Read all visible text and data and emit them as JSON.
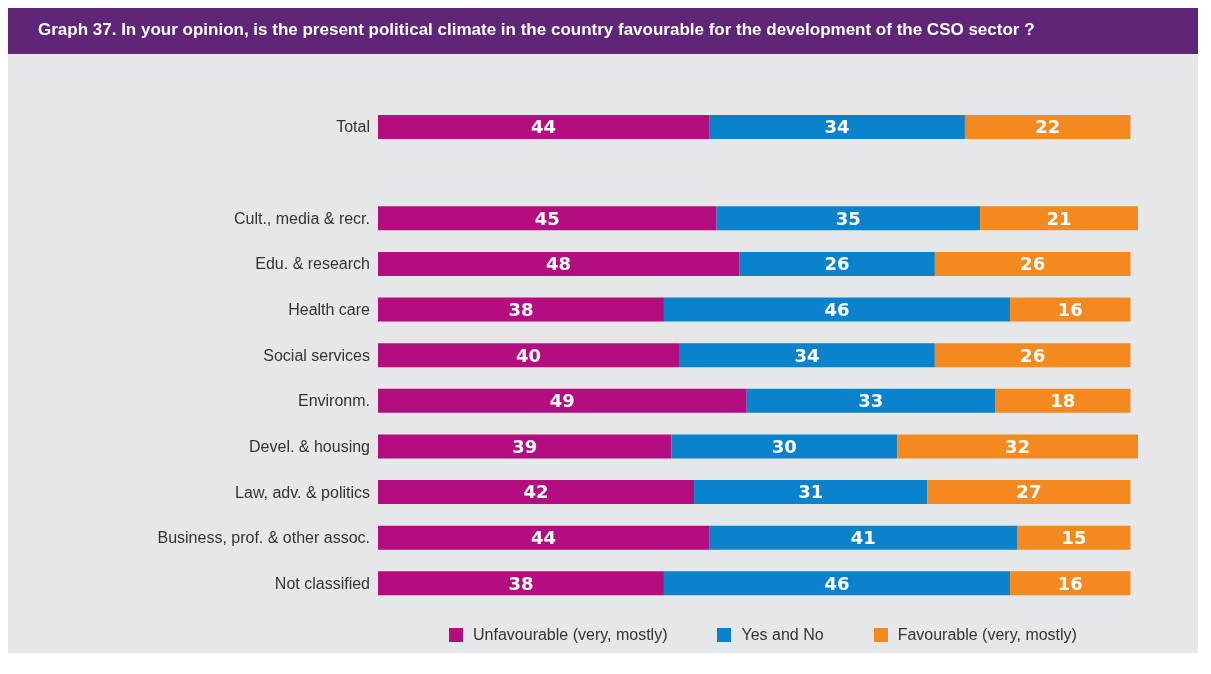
{
  "chart_data": {
    "type": "bar",
    "title": "Graph 37. In your opinion, is the present political climate in the country favourable for the development of the CSO sector ?",
    "orientation": "horizontal",
    "stacked": true,
    "data_labels": true,
    "legend": "bottom",
    "categories": [
      "Total",
      null,
      "Cult., media & recr.",
      "Edu. & research",
      "Health care",
      "Social services",
      "Environm.",
      "Devel. & housing",
      "Law, adv. & politics",
      "Business, prof. & other assoc.",
      "Not classified"
    ],
    "series": [
      {
        "name": "Unfavourable (very, mostly)",
        "color": "#b40d7f",
        "values": [
          44,
          null,
          45,
          48,
          38,
          40,
          49,
          39,
          42,
          44,
          38
        ]
      },
      {
        "name": "Yes and No",
        "color": "#0a83cc",
        "values": [
          34,
          null,
          35,
          26,
          46,
          34,
          33,
          30,
          31,
          41,
          46
        ]
      },
      {
        "name": "Favourable (very, mostly)",
        "color": "#f48a1f",
        "values": [
          22,
          null,
          21,
          26,
          16,
          26,
          18,
          32,
          27,
          15,
          16
        ]
      }
    ]
  }
}
